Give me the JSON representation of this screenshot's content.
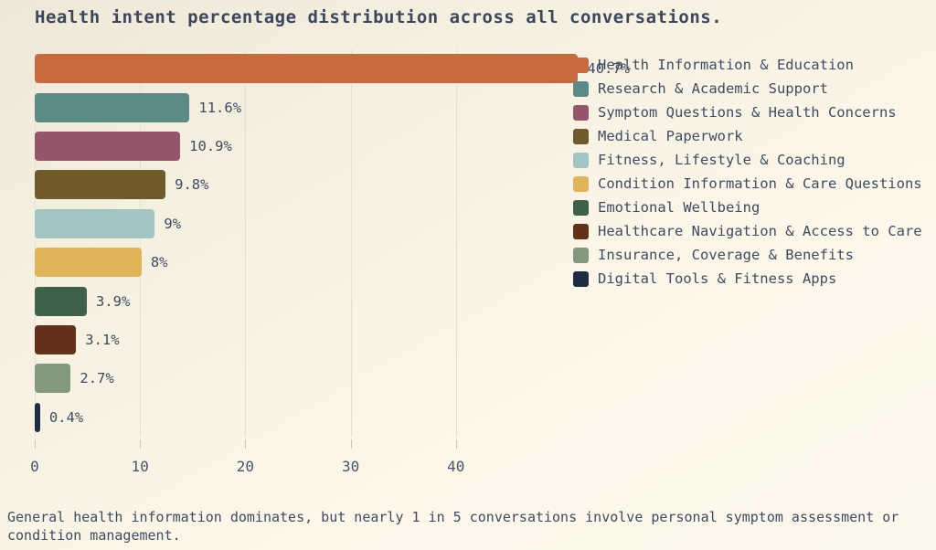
{
  "title": "Health intent percentage distribution across all conversations.",
  "caption": "General health information dominates, but nearly 1 in 5 conversations involve personal symptom assessment or condition management.",
  "chart_data": {
    "type": "bar",
    "orientation": "horizontal",
    "title": "Health intent percentage distribution across all conversations.",
    "categories": [
      "Health Information & Education",
      "Research & Academic Support",
      "Symptom Questions & Health Concerns",
      "Medical Paperwork",
      "Fitness, Lifestyle & Coaching",
      "Condition Information & Care Questions",
      "Emotional Wellbeing",
      "Healthcare Navigation & Access to Care",
      "Insurance, Coverage & Benefits",
      "Digital Tools & Fitness Apps"
    ],
    "values": [
      40.7,
      11.6,
      10.9,
      9.8,
      9,
      8,
      3.9,
      3.1,
      2.7,
      0.4
    ],
    "value_labels": [
      "40.7%",
      "11.6%",
      "10.9%",
      "9.8%",
      "9%",
      "8%",
      "3.9%",
      "3.1%",
      "2.7%",
      "0.4%"
    ],
    "colors": [
      "#C8693E",
      "#5B8B88",
      "#95566B",
      "#6E5A2A",
      "#A2C4C5",
      "#E2B45A",
      "#3E6148",
      "#63301A",
      "#84987E",
      "#1F2B42"
    ],
    "xlabel": "",
    "ylabel": "",
    "xticks": [
      0,
      10,
      20,
      30,
      40
    ],
    "xlim": [
      0,
      45.4
    ],
    "grid": true,
    "legend_position": "right"
  },
  "colors": {
    "background_top_left": "#EFE8D8",
    "background_bottom_right": "#FDF8EC",
    "text": "#3D4C62",
    "grid_line": "#E4E0D2",
    "tick_mark": "#C9C5B6"
  }
}
